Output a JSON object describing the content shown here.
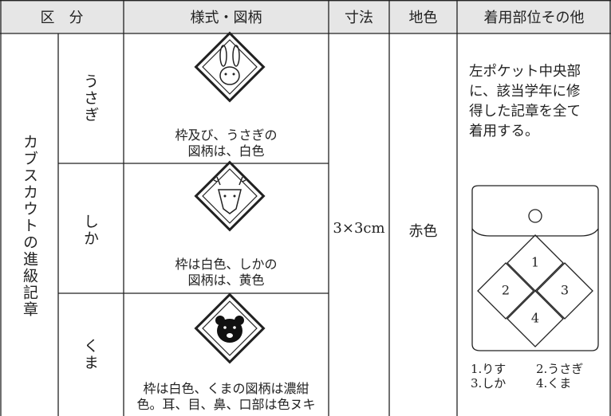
{
  "table": {
    "header": [
      "区　分",
      "様式・図柄",
      "寸法",
      "地色",
      "着用部位その他"
    ],
    "section": "カブスカウトの進級記章",
    "rows": [
      {
        "name": "うさぎ",
        "caption": [
          "枠及び、うさぎの",
          "図柄は、白色"
        ]
      },
      {
        "name": "しか",
        "caption": [
          "枠は白色、しかの",
          "図柄は、黄色"
        ]
      },
      {
        "name": "くま",
        "caption": [
          "枠は白色、くまの図柄は濃紺",
          "色。耳、目、鼻、口部は色ヌキ"
        ]
      }
    ],
    "size": "3×3cm",
    "ground_color": "赤色",
    "placement": [
      "左ポケット中央部",
      "に、該当学年に修",
      "得した記章を全て",
      "着用する。"
    ],
    "diagram": {
      "numbers": [
        "1",
        "2",
        "3",
        "4"
      ],
      "legend": [
        "1.りす",
        "2.うさぎ",
        "3.しか",
        "4.くま"
      ]
    }
  }
}
